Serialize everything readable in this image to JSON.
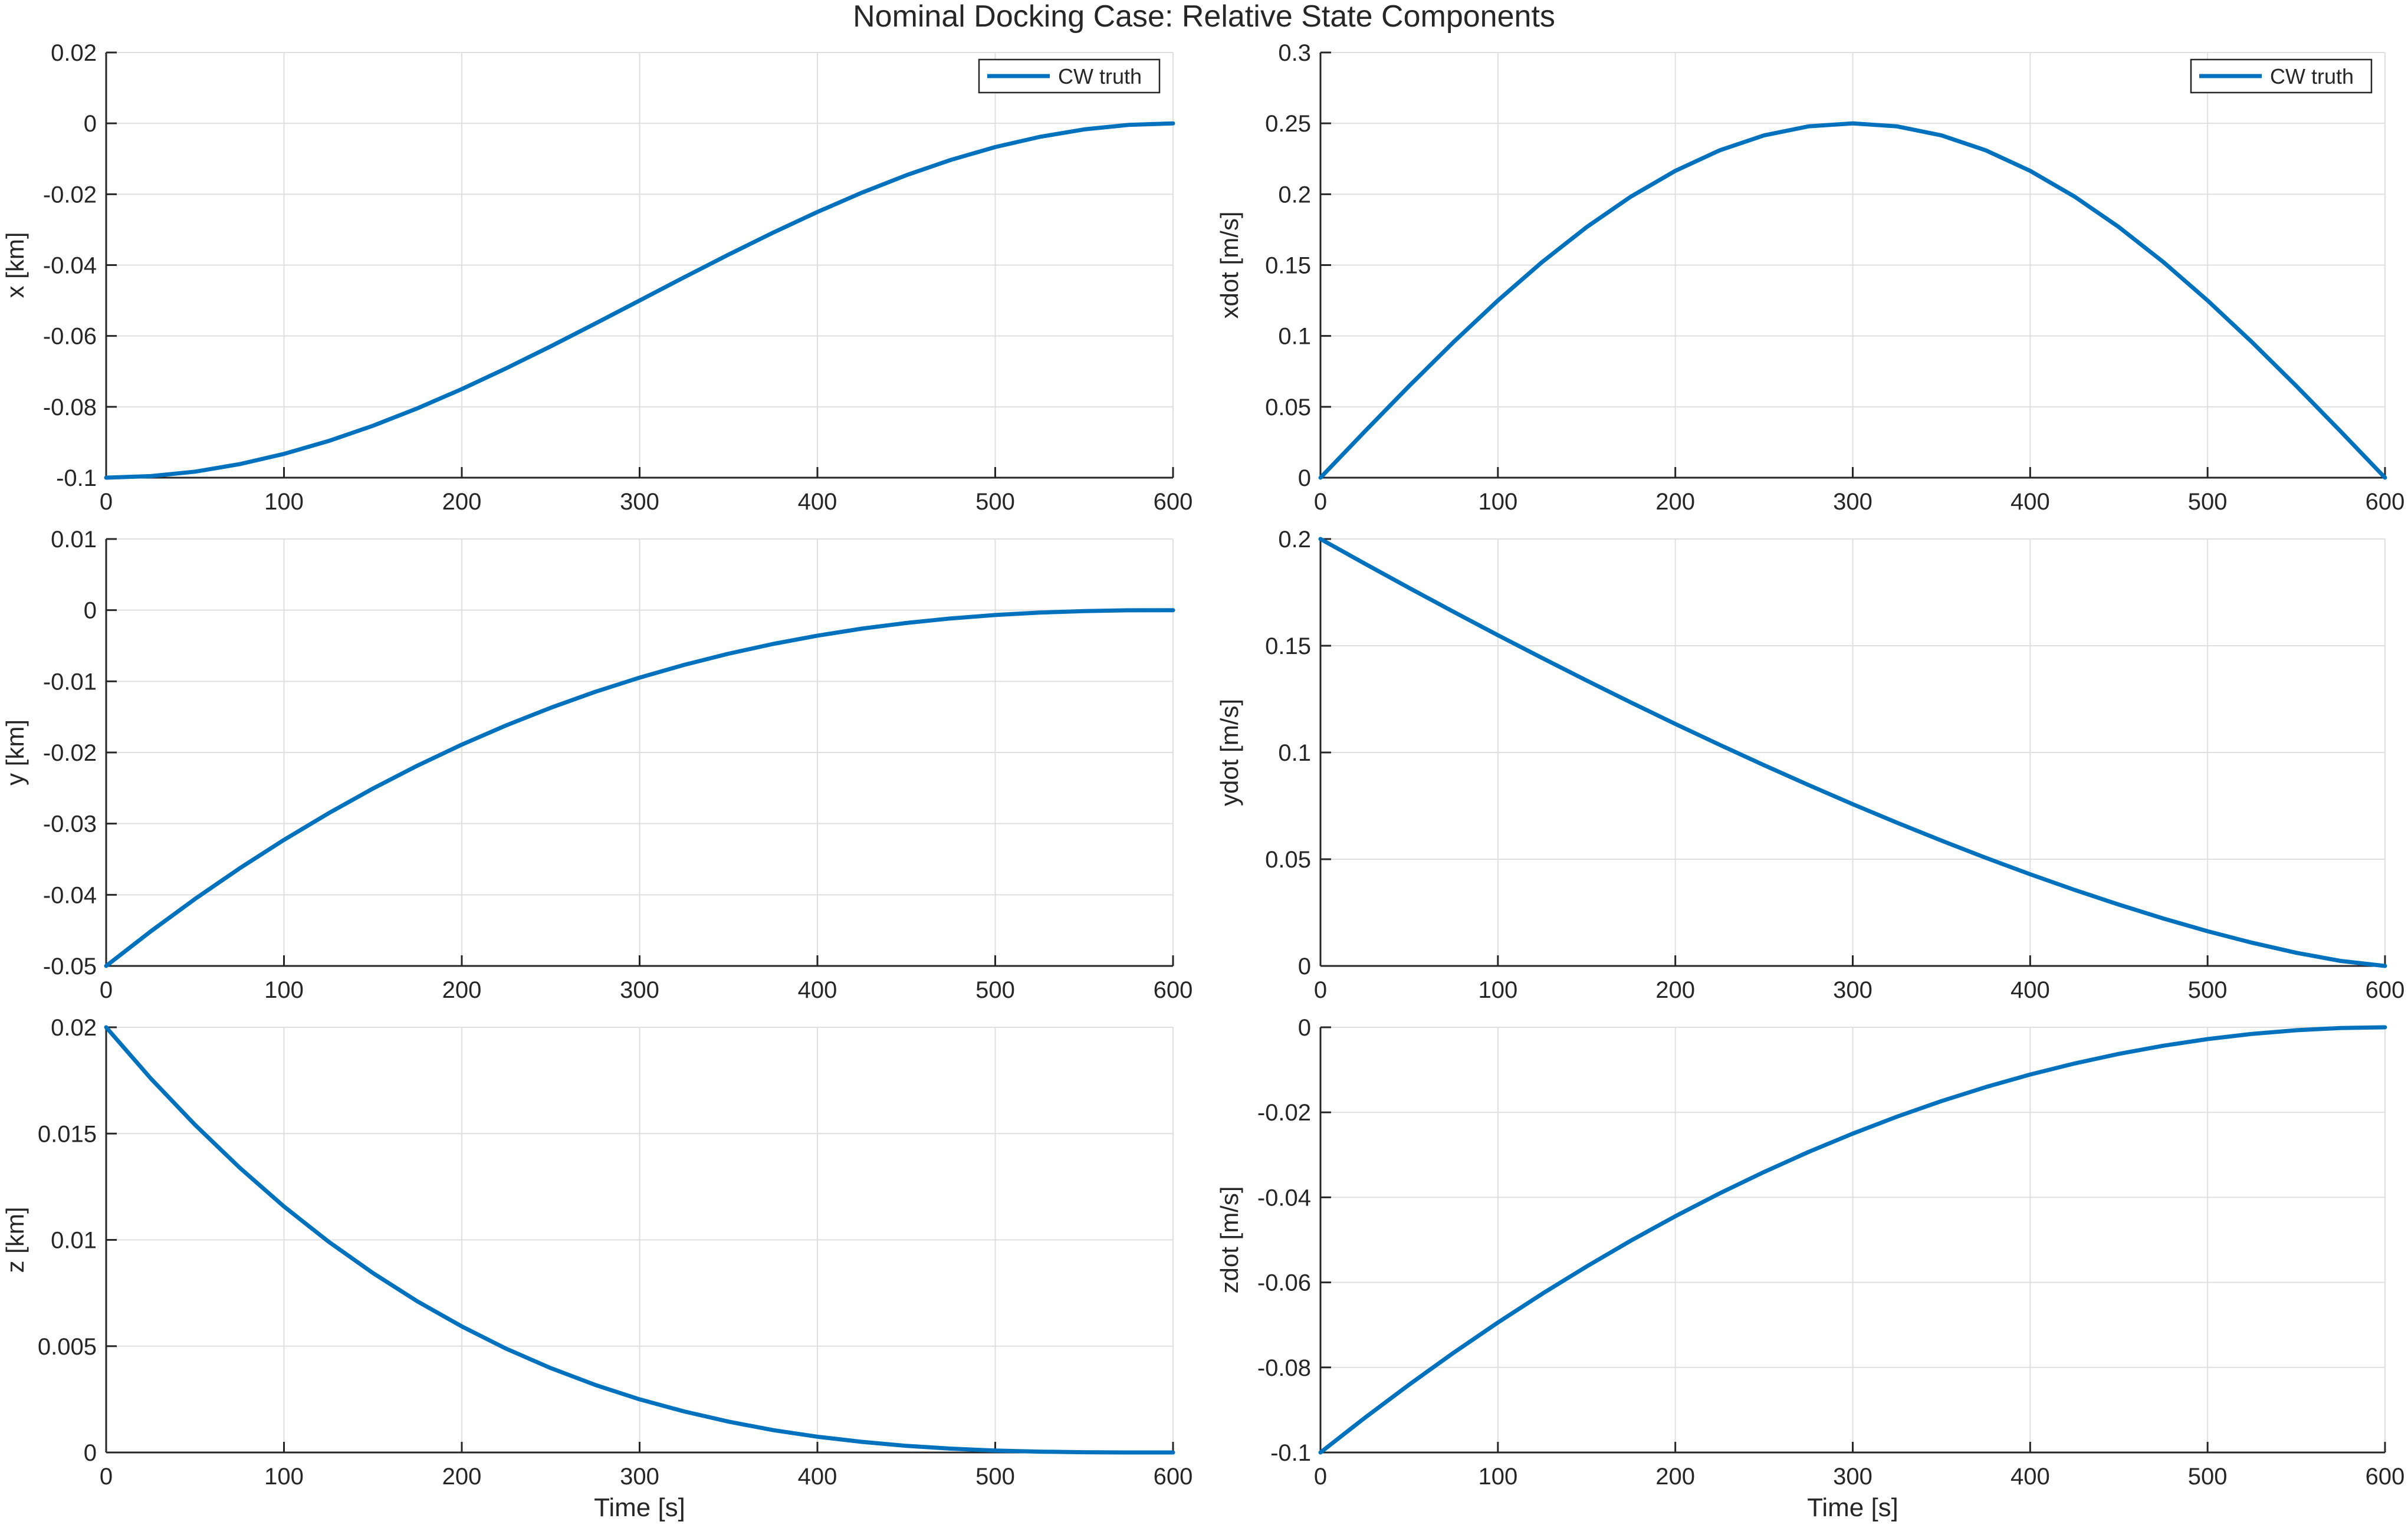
{
  "title": "Nominal Docking Case: Relative State Components",
  "colors": {
    "series": "#0072BD",
    "grid": "#DFDFDF",
    "axis": "#262626"
  },
  "chart_data": [
    {
      "type": "line",
      "ylabel": "x [km]",
      "xlabel": "",
      "xlim": [
        0,
        600
      ],
      "ylim": [
        -0.1,
        0.02
      ],
      "xticks": [
        "0",
        "100",
        "200",
        "300",
        "400",
        "500",
        "600"
      ],
      "yticks": [
        "-0.1",
        "-0.08",
        "-0.06",
        "-0.04",
        "-0.02",
        "0",
        "0.02"
      ],
      "grid": true,
      "legend": "top-right",
      "legend_entries": [
        "CW truth"
      ],
      "series": [
        {
          "name": "CW truth",
          "x": [
            0,
            25,
            50,
            75,
            100,
            125,
            150,
            175,
            200,
            225,
            250,
            275,
            300,
            325,
            350,
            375,
            400,
            425,
            450,
            475,
            500,
            525,
            550,
            575,
            600
          ],
          "y": [
            -0.1,
            -0.09957,
            -0.0983,
            -0.09619,
            -0.0933,
            -0.08967,
            -0.08536,
            -0.08044,
            -0.075,
            -0.06913,
            -0.06294,
            -0.05653,
            -0.05,
            -0.04347,
            -0.03706,
            -0.03087,
            -0.025,
            -0.01956,
            -0.01464,
            -0.01033,
            -0.0067,
            -0.00381,
            -0.0017,
            -0.00043,
            0
          ]
        }
      ]
    },
    {
      "type": "line",
      "ylabel": "xdot [m/s]",
      "xlabel": "",
      "xlim": [
        0,
        600
      ],
      "ylim": [
        0,
        0.3
      ],
      "xticks": [
        "0",
        "100",
        "200",
        "300",
        "400",
        "500",
        "600"
      ],
      "yticks": [
        "0",
        "0.05",
        "0.1",
        "0.15",
        "0.2",
        "0.25",
        "0.3"
      ],
      "grid": true,
      "legend": "top-right",
      "legend_entries": [
        "CW truth"
      ],
      "series": [
        {
          "name": "CW truth",
          "x": [
            0,
            25,
            50,
            75,
            100,
            125,
            150,
            175,
            200,
            225,
            250,
            275,
            300,
            325,
            350,
            375,
            400,
            425,
            450,
            475,
            500,
            525,
            550,
            575,
            600
          ],
          "y": [
            0,
            0.03263,
            0.0647,
            0.09567,
            0.125,
            0.15219,
            0.17678,
            0.19834,
            0.21651,
            0.23097,
            0.24148,
            0.24786,
            0.25,
            0.24786,
            0.24148,
            0.23097,
            0.21651,
            0.19834,
            0.17678,
            0.15219,
            0.125,
            0.09567,
            0.0647,
            0.03263,
            0
          ]
        }
      ]
    },
    {
      "type": "line",
      "ylabel": "y [km]",
      "xlabel": "",
      "xlim": [
        0,
        600
      ],
      "ylim": [
        -0.05,
        0.01
      ],
      "xticks": [
        "0",
        "100",
        "200",
        "300",
        "400",
        "500",
        "600"
      ],
      "yticks": [
        "-0.05",
        "-0.04",
        "-0.03",
        "-0.02",
        "-0.01",
        "0",
        "0.01"
      ],
      "grid": true,
      "series": [
        {
          "x": [
            0,
            25,
            50,
            75,
            100,
            125,
            150,
            175,
            200,
            225,
            250,
            275,
            300,
            325,
            350,
            375,
            400,
            425,
            450,
            475,
            500,
            525,
            550,
            575,
            600
          ],
          "y": [
            -0.05,
            -0.04515,
            -0.04058,
            -0.03629,
            -0.03228,
            -0.02855,
            -0.02507,
            -0.02186,
            -0.0189,
            -0.01619,
            -0.01372,
            -0.01148,
            -0.00948,
            -0.00769,
            -0.00612,
            -0.00475,
            -0.00358,
            -0.0026,
            -0.0018,
            -0.00116,
            -0.00068,
            -0.00034,
            -0.00013,
            -2e-05,
            0
          ]
        }
      ]
    },
    {
      "type": "line",
      "ylabel": "ydot [m/s]",
      "xlabel": "",
      "xlim": [
        0,
        600
      ],
      "ylim": [
        0,
        0.2
      ],
      "xticks": [
        "0",
        "100",
        "200",
        "300",
        "400",
        "500",
        "600"
      ],
      "yticks": [
        "0",
        "0.05",
        "0.1",
        "0.15",
        "0.2"
      ],
      "grid": true,
      "series": [
        {
          "x": [
            0,
            25,
            50,
            75,
            100,
            125,
            150,
            175,
            200,
            225,
            250,
            275,
            300,
            325,
            350,
            375,
            400,
            425,
            450,
            475,
            500,
            525,
            550,
            575,
            600
          ],
          "y": [
            0.2,
            0.18844,
            0.17706,
            0.1659,
            0.15494,
            0.14422,
            0.1337,
            0.12342,
            0.11336,
            0.10358,
            0.09404,
            0.08478,
            0.07578,
            0.0671,
            0.05872,
            0.05066,
            0.04296,
            0.03564,
            0.02872,
            0.02224,
            0.01628,
            0.01088,
            0.00616,
            0.00234,
            0
          ]
        }
      ]
    },
    {
      "type": "line",
      "ylabel": "z [km]",
      "xlabel": "Time [s]",
      "xlim": [
        0,
        600
      ],
      "ylim": [
        0,
        0.02
      ],
      "xticks": [
        "0",
        "100",
        "200",
        "300",
        "400",
        "500",
        "600"
      ],
      "yticks": [
        "0",
        "0.005",
        "0.01",
        "0.015",
        "0.02"
      ],
      "grid": true,
      "series": [
        {
          "x": [
            0,
            25,
            50,
            75,
            100,
            125,
            150,
            175,
            200,
            225,
            250,
            275,
            300,
            325,
            350,
            375,
            400,
            425,
            450,
            475,
            500,
            525,
            550,
            575,
            600
          ],
          "y": [
            0.02,
            0.0176,
            0.01541,
            0.0134,
            0.01157,
            0.00992,
            0.00844,
            0.00711,
            0.00593,
            0.00488,
            0.00397,
            0.00318,
            0.0025,
            0.00193,
            0.00145,
            0.00105,
            0.00074,
            0.0005,
            0.00031,
            0.00018,
            9e-05,
            4e-05,
            1e-05,
            0,
            0
          ]
        }
      ]
    },
    {
      "type": "line",
      "ylabel": "zdot [m/s]",
      "xlabel": "Time [s]",
      "xlim": [
        0,
        600
      ],
      "ylim": [
        -0.1,
        0
      ],
      "xticks": [
        "0",
        "100",
        "200",
        "300",
        "400",
        "500",
        "600"
      ],
      "yticks": [
        "-0.1",
        "-0.08",
        "-0.06",
        "-0.04",
        "-0.02",
        "0"
      ],
      "grid": true,
      "series": [
        {
          "x": [
            0,
            25,
            50,
            75,
            100,
            125,
            150,
            175,
            200,
            225,
            250,
            275,
            300,
            325,
            350,
            375,
            400,
            425,
            450,
            475,
            500,
            525,
            550,
            575,
            600
          ],
          "y": [
            -0.1,
            -0.09184,
            -0.08403,
            -0.07656,
            -0.06944,
            -0.06267,
            -0.05625,
            -0.05017,
            -0.04444,
            -0.03906,
            -0.03403,
            -0.02934,
            -0.025,
            -0.02101,
            -0.01736,
            -0.01406,
            -0.01111,
            -0.00851,
            -0.00625,
            -0.00434,
            -0.00278,
            -0.00156,
            -0.00069,
            -0.00017,
            0
          ]
        }
      ]
    }
  ]
}
